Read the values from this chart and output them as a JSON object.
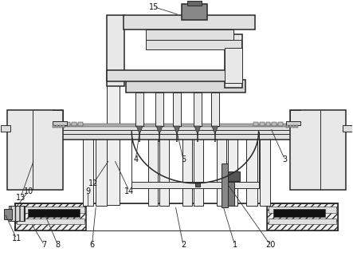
{
  "fig_width": 4.43,
  "fig_height": 3.21,
  "dpi": 100,
  "bg_color": "#ffffff",
  "lc": "#2a2a2a",
  "lw": 0.7,
  "label_fs": 7.0
}
